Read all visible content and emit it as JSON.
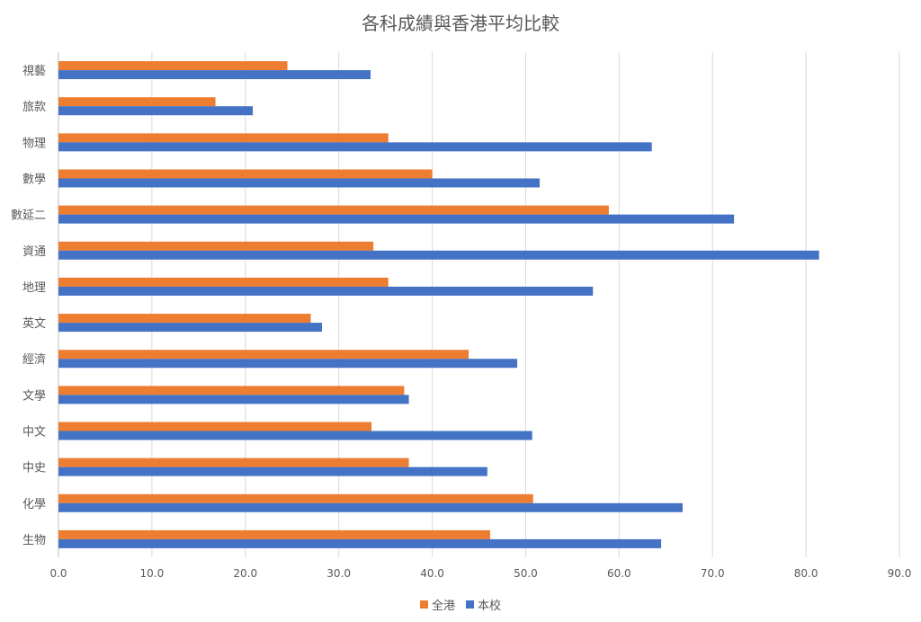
{
  "chart_data": {
    "type": "bar",
    "orientation": "horizontal",
    "title": "各科成績與香港平均比較",
    "categories": [
      "視藝",
      "旅款",
      "物理",
      "數學",
      "數延二",
      "資通",
      "地理",
      "英文",
      "經濟",
      "文學",
      "中文",
      "中史",
      "化學",
      "生物"
    ],
    "series": [
      {
        "name": "全港",
        "color": "#ED7D31",
        "values": [
          24.5,
          16.8,
          35.3,
          40.0,
          58.9,
          33.7,
          35.3,
          27.0,
          43.9,
          37.0,
          33.5,
          37.5,
          50.8,
          46.2
        ]
      },
      {
        "name": "本校",
        "color": "#4472C4",
        "values": [
          33.4,
          20.8,
          63.5,
          51.5,
          72.3,
          81.4,
          57.2,
          28.2,
          49.1,
          37.5,
          50.7,
          45.9,
          66.8,
          64.5
        ]
      }
    ],
    "xlim": [
      0,
      90
    ],
    "xticks": [
      "0.0",
      "10.0",
      "20.0",
      "30.0",
      "40.0",
      "50.0",
      "60.0",
      "70.0",
      "80.0",
      "90.0"
    ],
    "grid": true,
    "legend_position": "bottom"
  }
}
